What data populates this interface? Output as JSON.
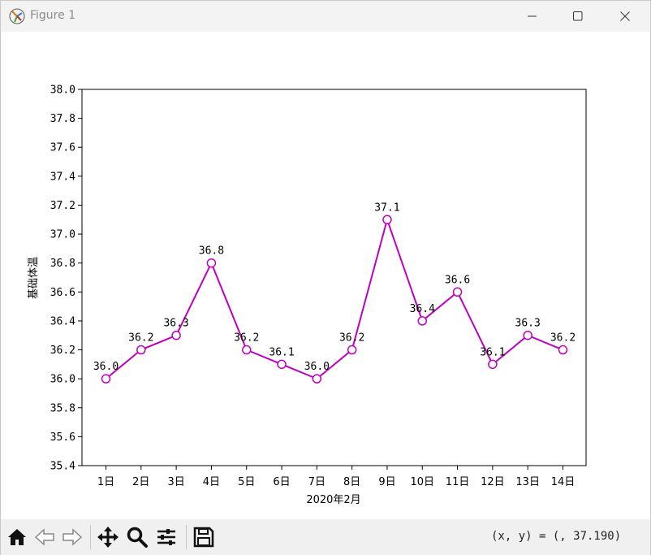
{
  "window": {
    "title": "Figure 1",
    "minimize_icon": "minimize-icon",
    "maximize_icon": "maximize-icon",
    "close_icon": "close-icon"
  },
  "toolbar": {
    "icons": [
      "home-icon",
      "back-icon",
      "forward-icon",
      "pan-icon",
      "zoom-icon",
      "configure-icon",
      "save-icon"
    ],
    "coordinate_readout": "(x, y) = (, 37.190)"
  },
  "chart_data": {
    "type": "line",
    "title": "",
    "xlabel": "2020年2月",
    "ylabel": "基础体温",
    "categories": [
      "1日",
      "2日",
      "3日",
      "4日",
      "5日",
      "6日",
      "7日",
      "8日",
      "9日",
      "10日",
      "11日",
      "12日",
      "13日",
      "14日"
    ],
    "values": [
      36.0,
      36.2,
      36.3,
      36.8,
      36.2,
      36.1,
      36.0,
      36.2,
      37.1,
      36.4,
      36.6,
      36.1,
      36.3,
      36.2
    ],
    "data_labels": [
      "36.0",
      "36.2",
      "36.3",
      "36.8",
      "36.2",
      "36.1",
      "36.0",
      "36.2",
      "37.1",
      "36.4",
      "36.6",
      "36.1",
      "36.3",
      "36.2"
    ],
    "yticks": [
      "35.4",
      "35.6",
      "35.8",
      "36.0",
      "36.2",
      "36.4",
      "36.6",
      "36.8",
      "37.0",
      "37.2",
      "37.4",
      "37.6",
      "37.8",
      "38.0"
    ],
    "ylim": [
      35.4,
      38.0
    ],
    "grid": false,
    "line_color": "#bf00bf",
    "marker_fill": "#ffffff",
    "marker": "circle"
  }
}
